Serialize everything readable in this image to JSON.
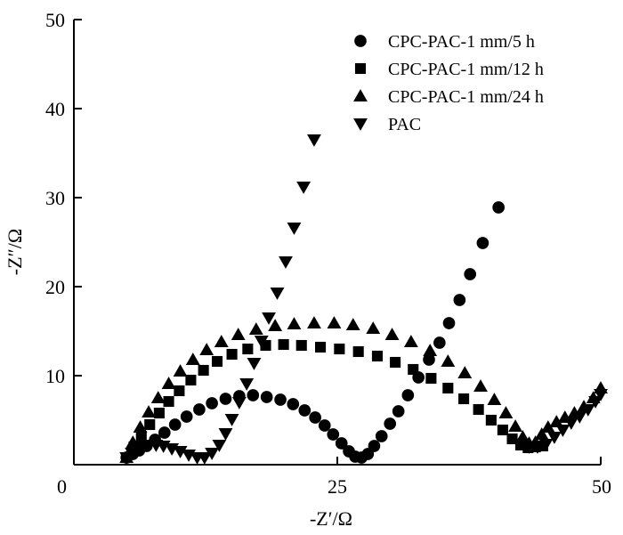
{
  "chart_data": {
    "type": "scatter",
    "xlabel": "-Z′/Ω",
    "ylabel": "-Z″/Ω",
    "xlim": [
      0,
      50
    ],
    "ylim": [
      0,
      50
    ],
    "xticks": [
      0,
      25,
      50
    ],
    "yticks": [
      10,
      20,
      30,
      40,
      50
    ],
    "xtick_labels": [
      "0",
      "25",
      "50"
    ],
    "ytick_labels": [
      "10",
      "20",
      "30",
      "40",
      "50"
    ],
    "grid": false,
    "legend_position": "top-right",
    "series": [
      {
        "name": "CPC-PAC-1 mm/5 h",
        "marker": "circle",
        "points": [
          [
            5.0,
            0.8
          ],
          [
            5.6,
            1.2
          ],
          [
            6.2,
            1.6
          ],
          [
            6.9,
            2.1
          ],
          [
            7.7,
            2.8
          ],
          [
            8.6,
            3.6
          ],
          [
            9.6,
            4.5
          ],
          [
            10.7,
            5.4
          ],
          [
            11.9,
            6.2
          ],
          [
            13.1,
            6.9
          ],
          [
            14.4,
            7.4
          ],
          [
            15.7,
            7.7
          ],
          [
            17.0,
            7.8
          ],
          [
            18.3,
            7.6
          ],
          [
            19.6,
            7.3
          ],
          [
            20.8,
            6.8
          ],
          [
            21.9,
            6.1
          ],
          [
            22.9,
            5.3
          ],
          [
            23.8,
            4.4
          ],
          [
            24.6,
            3.4
          ],
          [
            25.4,
            2.4
          ],
          [
            26.1,
            1.5
          ],
          [
            26.7,
            0.9
          ],
          [
            27.3,
            0.8
          ],
          [
            27.9,
            1.2
          ],
          [
            28.5,
            2.1
          ],
          [
            29.2,
            3.2
          ],
          [
            30.0,
            4.6
          ],
          [
            30.8,
            6.0
          ],
          [
            31.7,
            7.8
          ],
          [
            32.7,
            9.8
          ],
          [
            33.7,
            11.8
          ],
          [
            34.7,
            13.7
          ],
          [
            35.6,
            15.9
          ],
          [
            36.6,
            18.5
          ],
          [
            37.6,
            21.4
          ],
          [
            38.8,
            24.9
          ],
          [
            40.3,
            28.9
          ]
        ]
      },
      {
        "name": "CPC-PAC-1 mm/12 h",
        "marker": "square",
        "points": [
          [
            5.0,
            0.8
          ],
          [
            5.7,
            2.0
          ],
          [
            6.4,
            3.2
          ],
          [
            7.2,
            4.5
          ],
          [
            8.1,
            5.8
          ],
          [
            9.0,
            7.1
          ],
          [
            10.0,
            8.3
          ],
          [
            11.1,
            9.5
          ],
          [
            12.3,
            10.6
          ],
          [
            13.6,
            11.6
          ],
          [
            15.0,
            12.4
          ],
          [
            16.5,
            13.0
          ],
          [
            18.2,
            13.4
          ],
          [
            19.9,
            13.5
          ],
          [
            21.6,
            13.4
          ],
          [
            23.4,
            13.2
          ],
          [
            25.2,
            13.0
          ],
          [
            27.0,
            12.7
          ],
          [
            28.8,
            12.2
          ],
          [
            30.5,
            11.5
          ],
          [
            32.2,
            10.7
          ],
          [
            33.9,
            9.7
          ],
          [
            35.5,
            8.6
          ],
          [
            37.0,
            7.4
          ],
          [
            38.4,
            6.2
          ],
          [
            39.6,
            5.0
          ],
          [
            40.7,
            3.9
          ],
          [
            41.6,
            2.9
          ],
          [
            42.4,
            2.2
          ],
          [
            43.1,
            1.9
          ],
          [
            43.8,
            2.0
          ],
          [
            44.5,
            2.1
          ]
        ]
      },
      {
        "name": "CPC-PAC-1 mm/24 h",
        "marker": "triangle-up",
        "points": [
          [
            5.0,
            0.8
          ],
          [
            5.6,
            2.5
          ],
          [
            6.3,
            4.2
          ],
          [
            7.1,
            5.9
          ],
          [
            8.0,
            7.5
          ],
          [
            9.0,
            9.1
          ],
          [
            10.1,
            10.5
          ],
          [
            11.3,
            11.8
          ],
          [
            12.6,
            12.9
          ],
          [
            14.0,
            13.8
          ],
          [
            15.6,
            14.6
          ],
          [
            17.3,
            15.2
          ],
          [
            19.1,
            15.6
          ],
          [
            20.9,
            15.8
          ],
          [
            22.8,
            15.9
          ],
          [
            24.7,
            15.9
          ],
          [
            26.5,
            15.7
          ],
          [
            28.4,
            15.3
          ],
          [
            30.2,
            14.6
          ],
          [
            32.0,
            13.8
          ],
          [
            33.8,
            12.8
          ],
          [
            35.5,
            11.6
          ],
          [
            37.1,
            10.3
          ],
          [
            38.6,
            8.8
          ],
          [
            39.9,
            7.3
          ],
          [
            41.0,
            5.8
          ],
          [
            41.9,
            4.3
          ],
          [
            42.6,
            3.1
          ],
          [
            43.2,
            2.4
          ],
          [
            43.8,
            2.5
          ],
          [
            44.4,
            3.4
          ],
          [
            45.0,
            4.2
          ],
          [
            45.8,
            4.8
          ],
          [
            46.6,
            5.3
          ],
          [
            47.5,
            5.8
          ],
          [
            48.4,
            6.5
          ],
          [
            49.3,
            7.5
          ],
          [
            50.0,
            8.6
          ]
        ]
      },
      {
        "name": "PAC",
        "marker": "triangle-down",
        "points": [
          [
            5.0,
            0.8
          ],
          [
            5.5,
            1.3
          ],
          [
            6.0,
            1.7
          ],
          [
            6.5,
            2.0
          ],
          [
            7.1,
            2.2
          ],
          [
            7.8,
            2.2
          ],
          [
            8.5,
            2.1
          ],
          [
            9.3,
            1.8
          ],
          [
            10.1,
            1.5
          ],
          [
            10.9,
            1.1
          ],
          [
            11.7,
            0.8
          ],
          [
            12.4,
            0.8
          ],
          [
            13.1,
            1.3
          ],
          [
            13.8,
            2.2
          ],
          [
            14.4,
            3.5
          ],
          [
            15.0,
            5.1
          ],
          [
            15.7,
            7.0
          ],
          [
            16.4,
            9.1
          ],
          [
            17.1,
            11.4
          ],
          [
            17.8,
            13.9
          ],
          [
            18.5,
            16.5
          ],
          [
            19.3,
            19.3
          ],
          [
            20.1,
            22.8
          ],
          [
            20.9,
            26.6
          ],
          [
            21.8,
            31.2
          ],
          [
            22.8,
            36.5
          ],
          [
            43.2,
            2.0
          ],
          [
            44.0,
            2.0
          ],
          [
            44.8,
            2.3
          ],
          [
            45.6,
            3.1
          ],
          [
            46.4,
            3.9
          ],
          [
            47.2,
            4.7
          ],
          [
            48.0,
            5.4
          ],
          [
            48.8,
            6.2
          ],
          [
            49.5,
            7.1
          ],
          [
            50.0,
            7.9
          ]
        ]
      }
    ]
  }
}
